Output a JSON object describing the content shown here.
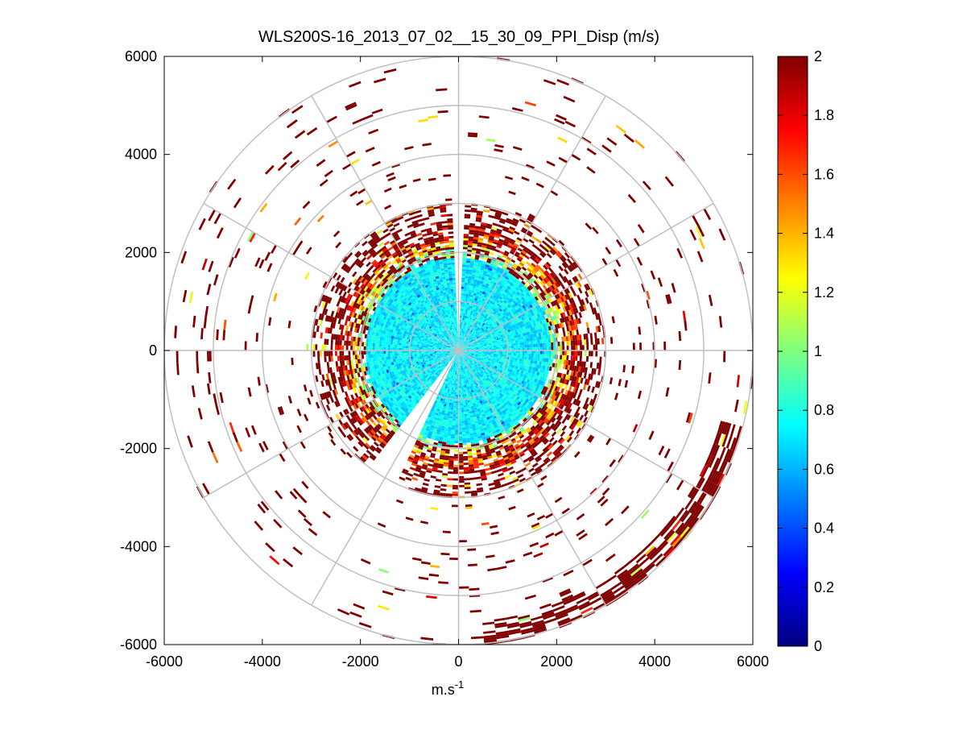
{
  "chart_data": {
    "type": "heatmap",
    "subtype": "polar-ppi",
    "title": "WLS200S-16_2013_07_02__15_30_09_PPI_Disp (m/s)",
    "xlabel": "m.s",
    "xlabel_superscript": "-1",
    "ylabel": "",
    "xlim": [
      -6000,
      6000
    ],
    "ylim": [
      -6000,
      6000
    ],
    "x_ticks": [
      "-6000",
      "-4000",
      "-2000",
      "0",
      "2000",
      "4000",
      "6000"
    ],
    "y_ticks": [
      "6000",
      "4000",
      "2000",
      "0",
      "-2000",
      "-4000",
      "-6000"
    ],
    "x_tick_values": [
      -6000,
      -4000,
      -2000,
      0,
      2000,
      4000,
      6000
    ],
    "y_tick_values": [
      6000,
      4000,
      2000,
      0,
      -2000,
      -4000,
      -6000
    ],
    "grid": true,
    "polar_grid": {
      "ring_radii": [
        1000,
        2000,
        3000,
        4000,
        5000,
        6000
      ],
      "spoke_angles_deg": [
        0,
        30,
        60,
        90,
        120,
        150,
        180,
        210,
        240,
        270,
        300,
        330
      ],
      "color": "#c0c0c0"
    },
    "colorbar": {
      "colormap": "jet",
      "min": 0,
      "max": 2,
      "tick_values": [
        0,
        0.2,
        0.4,
        0.6,
        0.8,
        1,
        1.2,
        1.4,
        1.6,
        1.8,
        2
      ],
      "tick_labels": [
        "0",
        "0.2",
        "0.4",
        "0.6",
        "0.8",
        "1",
        "1.2",
        "1.4",
        "1.6",
        "1.8",
        "2"
      ],
      "placement": "right"
    },
    "value_field": {
      "max_range": 6000,
      "inner_core": {
        "r_max": 1900,
        "value_range": [
          0.6,
          0.85
        ]
      },
      "transition_ring": {
        "r_range": [
          1900,
          2500
        ],
        "value_range": [
          0.9,
          1.9
        ]
      },
      "outer_sparse": {
        "r_range": [
          2500,
          6000
        ],
        "typical_value": 2.0
      },
      "gap_sectors_deg": [
        [
          88,
          92
        ],
        [
          232,
          246
        ]
      ],
      "dense_outer_arc_deg": [
        275,
        345
      ]
    }
  }
}
